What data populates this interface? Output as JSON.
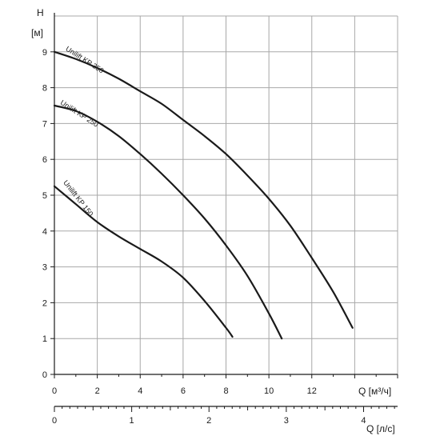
{
  "chart_data": {
    "type": "line",
    "y_axis": {
      "label_top": "H",
      "label_unit": "[м]",
      "ticks": [
        "0",
        "1",
        "2",
        "3",
        "4",
        "5",
        "6",
        "7",
        "8",
        "9"
      ],
      "range": [
        0,
        10
      ]
    },
    "x_axis_primary": {
      "label": "Q [м³/ч]",
      "ticks": [
        "0",
        "2",
        "4",
        "6",
        "8",
        "10",
        "12"
      ],
      "range": [
        0,
        16
      ]
    },
    "x_axis_secondary": {
      "label": "Q [л/с]",
      "ticks": [
        "0",
        "1",
        "2",
        "3",
        "4"
      ],
      "range": [
        0,
        4.44
      ]
    },
    "grid": true,
    "series": [
      {
        "name": "Unilift KP 350",
        "x": [
          0,
          1,
          2,
          3,
          4,
          5,
          6,
          7,
          8,
          9,
          10,
          11,
          12,
          13,
          13.9
        ],
        "y": [
          9.0,
          8.8,
          8.55,
          8.25,
          7.9,
          7.55,
          7.1,
          6.65,
          6.15,
          5.55,
          4.9,
          4.15,
          3.25,
          2.3,
          1.3
        ]
      },
      {
        "name": "Unilift KP 250",
        "x": [
          0,
          1,
          2,
          3,
          4,
          5,
          6,
          7,
          8,
          9,
          10,
          10.6
        ],
        "y": [
          7.5,
          7.35,
          7.05,
          6.65,
          6.15,
          5.6,
          5.0,
          4.35,
          3.6,
          2.75,
          1.7,
          1.0
        ]
      },
      {
        "name": "Unilift KP 150",
        "x": [
          0,
          1,
          2,
          3,
          4,
          5,
          6,
          7,
          8,
          8.3
        ],
        "y": [
          5.25,
          4.75,
          4.25,
          3.85,
          3.5,
          3.15,
          2.7,
          2.05,
          1.3,
          1.05
        ]
      }
    ],
    "curve_labels": [
      {
        "text": "Unilift KP 350",
        "x": 0.5,
        "y": 9.05
      },
      {
        "text": "Unilift KP 250",
        "x": 0.25,
        "y": 7.55
      },
      {
        "text": "Unilift KP 150",
        "x": 0.4,
        "y": 5.35
      }
    ],
    "colors": {
      "curve": "#1a1a1a",
      "grid": "#a8a8a8",
      "axis": "#1a1a1a"
    }
  }
}
